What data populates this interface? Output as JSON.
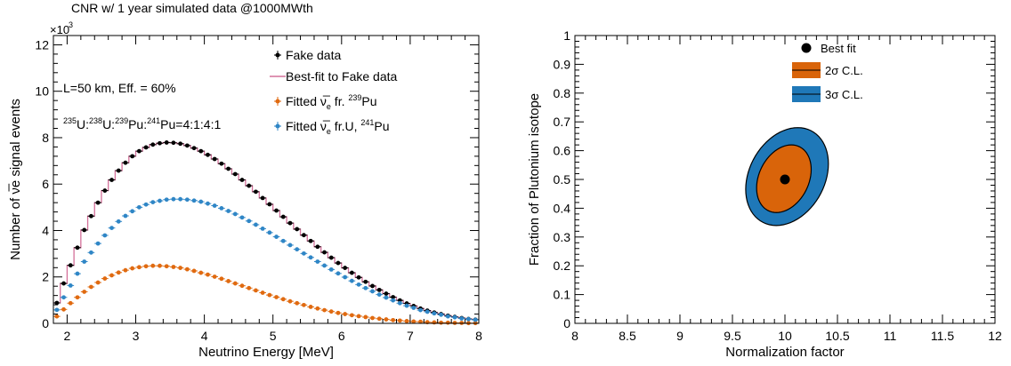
{
  "chart_data": [
    {
      "type": "line",
      "title": "CNR w/ 1 year simulated data @1000MWth",
      "xlabel": "Neutrino Energy [MeV]",
      "ylabel": "Number of ν̅e signal events",
      "multiplier_label": "×10",
      "multiplier_exp": "3",
      "xlim": [
        1.8,
        8
      ],
      "ylim": [
        0,
        12.4
      ],
      "x_ticks": [
        "2",
        "3",
        "4",
        "5",
        "6",
        "7",
        "8"
      ],
      "y_ticks": [
        "0",
        "2",
        "4",
        "6",
        "8",
        "10",
        "12"
      ],
      "annotations": {
        "baseline": "L=50 km, Eff. = 60%",
        "ratio_parts": [
          "235",
          "U:",
          "238",
          "U:",
          "239",
          "Pu:",
          "241",
          "Pu=4:1:4:1"
        ]
      },
      "legend": [
        {
          "label": "Fake data",
          "color": "#000000",
          "marker": "point"
        },
        {
          "label": "Best-fit to Fake data",
          "color": "#d4709a",
          "marker": "line"
        },
        {
          "label_parts": [
            "Fitted ν̅",
            "e",
            " fr. ",
            "239",
            "Pu"
          ],
          "color": "#e06a10",
          "marker": "point"
        },
        {
          "label_parts": [
            "Fitted ν̅",
            "e",
            " fr.U, ",
            "241",
            "Pu"
          ],
          "color": "#2f86c6",
          "marker": "point"
        }
      ],
      "x": [
        1.85,
        1.95,
        2.05,
        2.15,
        2.25,
        2.35,
        2.45,
        2.55,
        2.65,
        2.75,
        2.85,
        2.95,
        3.05,
        3.15,
        3.25,
        3.35,
        3.45,
        3.55,
        3.65,
        3.75,
        3.85,
        3.95,
        4.05,
        4.15,
        4.25,
        4.35,
        4.45,
        4.55,
        4.65,
        4.75,
        4.85,
        4.95,
        5.05,
        5.15,
        5.25,
        5.35,
        5.45,
        5.55,
        5.65,
        5.75,
        5.85,
        5.95,
        6.05,
        6.15,
        6.25,
        6.35,
        6.45,
        6.55,
        6.65,
        6.75,
        6.85,
        6.95,
        7.05,
        7.15,
        7.25,
        7.35,
        7.45,
        7.55,
        7.65,
        7.75,
        7.85,
        7.95
      ],
      "series": [
        {
          "name": "Fake data",
          "color": "#000000",
          "values": [
            0.88,
            1.72,
            2.5,
            3.26,
            4.02,
            4.62,
            5.2,
            5.72,
            6.18,
            6.58,
            6.92,
            7.2,
            7.42,
            7.58,
            7.7,
            7.76,
            7.79,
            7.78,
            7.74,
            7.66,
            7.55,
            7.42,
            7.26,
            7.08,
            6.88,
            6.66,
            6.43,
            6.18,
            5.93,
            5.67,
            5.4,
            5.13,
            4.86,
            4.59,
            4.32,
            4.06,
            3.8,
            3.55,
            3.3,
            3.06,
            2.83,
            2.6,
            2.39,
            2.18,
            1.98,
            1.79,
            1.61,
            1.44,
            1.28,
            1.13,
            0.99,
            0.86,
            0.75,
            0.64,
            0.55,
            0.47,
            0.4,
            0.33,
            0.28,
            0.23,
            0.19,
            0.16
          ]
        },
        {
          "name": "Best-fit to Fake data",
          "color": "#d4709a",
          "values": [
            0.88,
            1.72,
            2.5,
            3.26,
            4.02,
            4.62,
            5.2,
            5.72,
            6.18,
            6.58,
            6.92,
            7.2,
            7.42,
            7.58,
            7.7,
            7.76,
            7.79,
            7.78,
            7.74,
            7.66,
            7.55,
            7.42,
            7.26,
            7.08,
            6.88,
            6.66,
            6.43,
            6.18,
            5.93,
            5.67,
            5.4,
            5.13,
            4.86,
            4.59,
            4.32,
            4.06,
            3.8,
            3.55,
            3.3,
            3.06,
            2.83,
            2.6,
            2.39,
            2.18,
            1.98,
            1.79,
            1.61,
            1.44,
            1.28,
            1.13,
            0.99,
            0.86,
            0.75,
            0.64,
            0.55,
            0.47,
            0.4,
            0.33,
            0.28,
            0.23,
            0.19,
            0.16
          ]
        },
        {
          "name": "Fitted ν̅e fr. 239Pu",
          "color": "#e06a10",
          "values": [
            0.3,
            0.6,
            0.87,
            1.12,
            1.36,
            1.57,
            1.76,
            1.93,
            2.07,
            2.19,
            2.29,
            2.37,
            2.42,
            2.46,
            2.48,
            2.48,
            2.46,
            2.43,
            2.39,
            2.33,
            2.26,
            2.18,
            2.1,
            2.01,
            1.92,
            1.82,
            1.72,
            1.62,
            1.52,
            1.42,
            1.32,
            1.22,
            1.13,
            1.04,
            0.95,
            0.87,
            0.79,
            0.71,
            0.64,
            0.57,
            0.51,
            0.45,
            0.4,
            0.35,
            0.31,
            0.27,
            0.23,
            0.2,
            0.17,
            0.14,
            0.12,
            0.1,
            0.08,
            0.07,
            0.05,
            0.04,
            0.03,
            0.03,
            0.02,
            0.02,
            0.01,
            0.01
          ]
        },
        {
          "name": "Fitted ν̅e fr.U, 241Pu",
          "color": "#2f86c6",
          "values": [
            0.58,
            1.12,
            1.63,
            2.14,
            2.66,
            3.05,
            3.44,
            3.79,
            4.11,
            4.39,
            4.63,
            4.83,
            5.0,
            5.12,
            5.22,
            5.28,
            5.33,
            5.35,
            5.35,
            5.33,
            5.29,
            5.24,
            5.16,
            5.07,
            4.96,
            4.84,
            4.71,
            4.56,
            4.41,
            4.25,
            4.08,
            3.91,
            3.73,
            3.55,
            3.37,
            3.19,
            3.01,
            2.84,
            2.66,
            2.49,
            2.32,
            2.15,
            1.99,
            1.83,
            1.67,
            1.52,
            1.38,
            1.24,
            1.11,
            0.99,
            0.87,
            0.76,
            0.67,
            0.57,
            0.5,
            0.43,
            0.37,
            0.3,
            0.26,
            0.21,
            0.18,
            0.15
          ]
        }
      ]
    },
    {
      "type": "contour",
      "xlabel": "Normalization factor",
      "ylabel": "Fraction of Plutonium isotope",
      "xlim": [
        8,
        12
      ],
      "ylim": [
        0,
        1
      ],
      "x_ticks": [
        "8",
        "8.5",
        "9",
        "9.5",
        "10",
        "10.5",
        "11",
        "11.5",
        "12"
      ],
      "y_ticks": [
        "0",
        "0.1",
        "0.2",
        "0.3",
        "0.4",
        "0.5",
        "0.6",
        "0.7",
        "0.8",
        "0.9",
        "1"
      ],
      "best_fit": {
        "label": "Best fit",
        "x": 10.0,
        "y": 0.5,
        "color": "#000000"
      },
      "regions": [
        {
          "label": "3σ C.L.",
          "color": "#1f78b8",
          "x_range": [
            9.64,
            10.4
          ],
          "y_range": [
            0.34,
            0.68
          ]
        },
        {
          "label": "2σ C.L.",
          "color": "#d9640a",
          "x_range": [
            9.74,
            10.24
          ],
          "y_range": [
            0.385,
            0.62
          ]
        }
      ]
    }
  ]
}
